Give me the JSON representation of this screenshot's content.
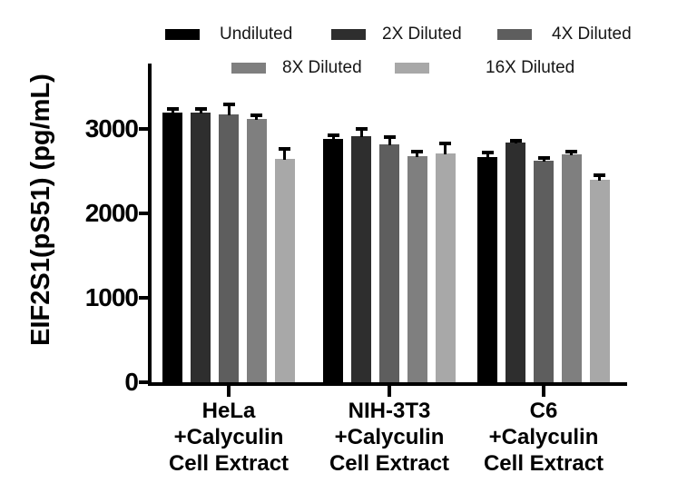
{
  "chart_data": {
    "type": "bar",
    "title": "",
    "ylabel": "EIF2S1(pS51) (pg/mL)",
    "xlabel": "",
    "ylim": [
      0,
      3780
    ],
    "yticks": [
      "0",
      "1000",
      "2000",
      "3000"
    ],
    "ytick_values": [
      0,
      1000,
      2000,
      3000
    ],
    "grid": false,
    "legend_position": "top",
    "axis_color": "#000000",
    "error_bar_color": "#000000",
    "categories": [
      {
        "lines": [
          "HeLa",
          "+Calyculin",
          "Cell Extract"
        ]
      },
      {
        "lines": [
          "NIH-3T3",
          "+Calyculin",
          "Cell Extract"
        ]
      },
      {
        "lines": [
          "C6",
          "+Calyculin",
          "Cell Extract"
        ]
      }
    ],
    "series": [
      {
        "name": "Undiluted",
        "color": "#000000",
        "values": [
          3200,
          2890,
          2670
        ],
        "errors": [
          45,
          36,
          54
        ]
      },
      {
        "name": "2X Diluted",
        "color": "#2e2e2e",
        "values": [
          3200,
          2920,
          2840
        ],
        "errors": [
          46,
          86,
          29
        ]
      },
      {
        "name": "4X Diluted",
        "color": "#5e5e5e",
        "values": [
          3175,
          2820,
          2630
        ],
        "errors": [
          125,
          93,
          35
        ]
      },
      {
        "name": "8X Diluted",
        "color": "#7f7f7f",
        "values": [
          3120,
          2680,
          2700
        ],
        "errors": [
          46,
          57,
          40
        ]
      },
      {
        "name": "16X Diluted",
        "color": "#a8a8a8",
        "values": [
          2650,
          2710,
          2400
        ],
        "errors": [
          115,
          125,
          60
        ]
      }
    ]
  }
}
